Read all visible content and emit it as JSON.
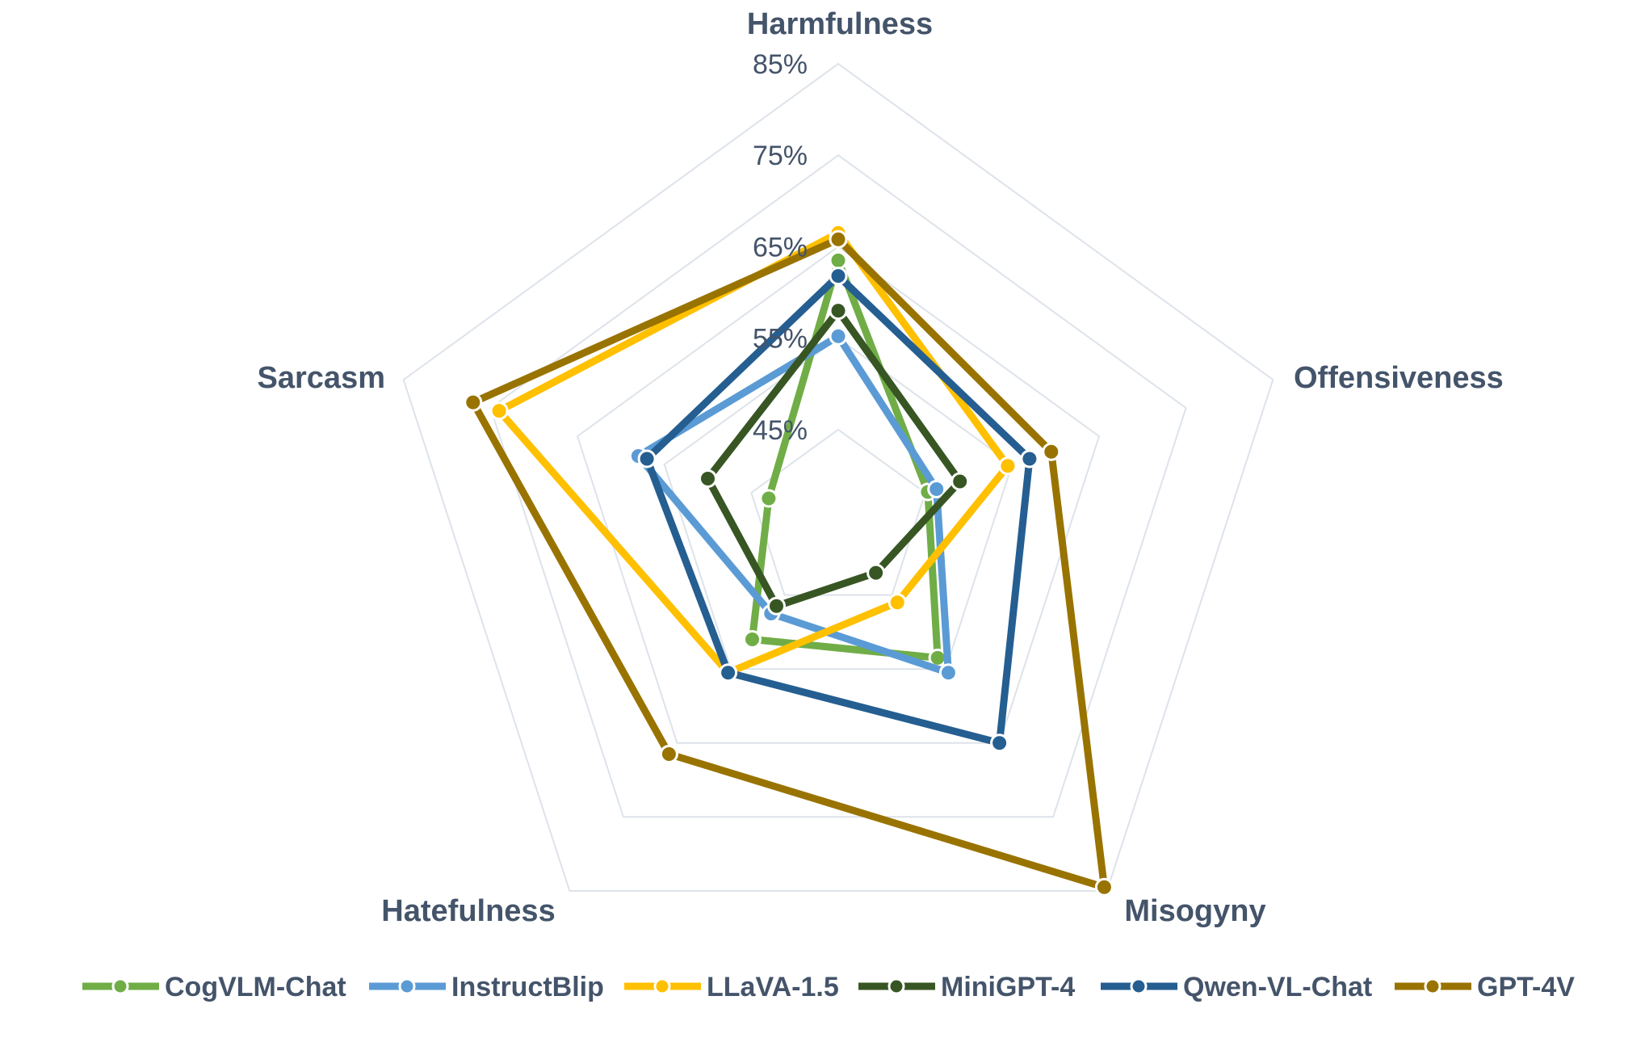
{
  "chart_data": {
    "type": "radar",
    "axes": [
      "Harmfulness",
      "Offensiveness",
      "Misogyny",
      "Hatefulness",
      "Sarcasm"
    ],
    "r_range": [
      35,
      85
    ],
    "ticks": [
      45,
      55,
      65,
      75,
      85
    ],
    "tick_labels": [
      "45%",
      "55%",
      "65%",
      "75%",
      "85%"
    ],
    "grid": true,
    "legend_position": "bottom",
    "series": [
      {
        "name": "CogVLM-Chat",
        "color": "#70ad47",
        "values": [
          63.5,
          45.3,
          53.5,
          51.0,
          43.0
        ]
      },
      {
        "name": "InstructBlip",
        "color": "#5b9bd5",
        "values": [
          55.2,
          46.3,
          55.5,
          47.5,
          58.0
        ]
      },
      {
        "name": "LLaVA-1.5",
        "color": "#ffc000",
        "values": [
          66.5,
          54.5,
          46.0,
          55.5,
          74.0
        ]
      },
      {
        "name": "MiniGPT-4",
        "color": "#375623",
        "values": [
          58.0,
          49.0,
          42.0,
          46.5,
          50.0
        ]
      },
      {
        "name": "Qwen-VL-Chat",
        "color": "#255e91",
        "values": [
          61.8,
          57.0,
          65.0,
          55.5,
          57.0
        ]
      },
      {
        "name": "GPT-4V",
        "color": "#997300",
        "values": [
          65.8,
          59.5,
          84.5,
          66.5,
          77.0
        ]
      }
    ]
  }
}
